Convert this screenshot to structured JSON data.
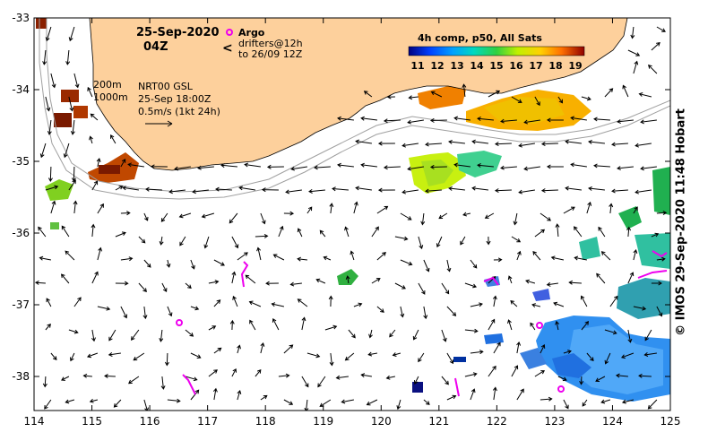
{
  "map": {
    "date_title": "25-Sep-2020",
    "time_title": "04Z",
    "contour_labels": [
      "200m",
      "1000m"
    ],
    "current_source": "NRT00 GSL",
    "current_time": "25-Sep 18:00Z",
    "velocity_scale_label": "0.5m/s (1kt 24h)",
    "argo_label": "Argo",
    "drifters_line1": "drifters@12h",
    "drifters_line2": "to 26/09 12Z",
    "colorbar_title": "4h comp, p50, All Sats",
    "colorbar_ticks": [
      "11",
      "12",
      "13",
      "14",
      "15",
      "16",
      "17",
      "18",
      "19"
    ],
    "lon_ticks": [
      "114",
      "115",
      "116",
      "117",
      "118",
      "119",
      "120",
      "121",
      "122",
      "123",
      "124",
      "125"
    ],
    "lat_ticks": [
      "-33",
      "-34",
      "-35",
      "-36",
      "-37",
      "-38"
    ],
    "credit": "© IMOS 29-Sep-2020 11:48 Hobart",
    "colors": {
      "land": "#fdd09c",
      "argo": "#ee00ee",
      "ocean": "#ffffff"
    }
  }
}
